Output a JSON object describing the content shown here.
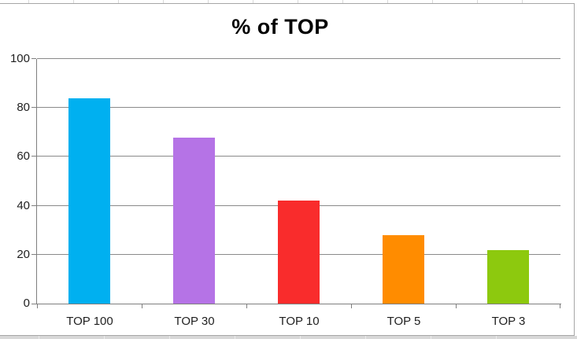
{
  "chart_data": {
    "type": "bar",
    "title": "% of TOP",
    "categories": [
      "TOP 100",
      "TOP 30",
      "TOP 10",
      "TOP 5",
      "TOP 3"
    ],
    "values": [
      84,
      68,
      42,
      28,
      22
    ],
    "bar_colors": [
      "#00B0F0",
      "#B573E6",
      "#F92C2C",
      "#FF8C00",
      "#8DC90E"
    ],
    "xlabel": "",
    "ylabel": "",
    "ylim": [
      0,
      100
    ],
    "yticks": [
      0,
      20,
      40,
      60,
      80,
      100
    ],
    "grid": true,
    "legend": "none"
  },
  "colors": {
    "gridline": "#8A8A8A",
    "axis_line": "#7F7F7F",
    "chart_border": "#A6A6A6",
    "bottom_row_fill": "#D8D8D8"
  }
}
